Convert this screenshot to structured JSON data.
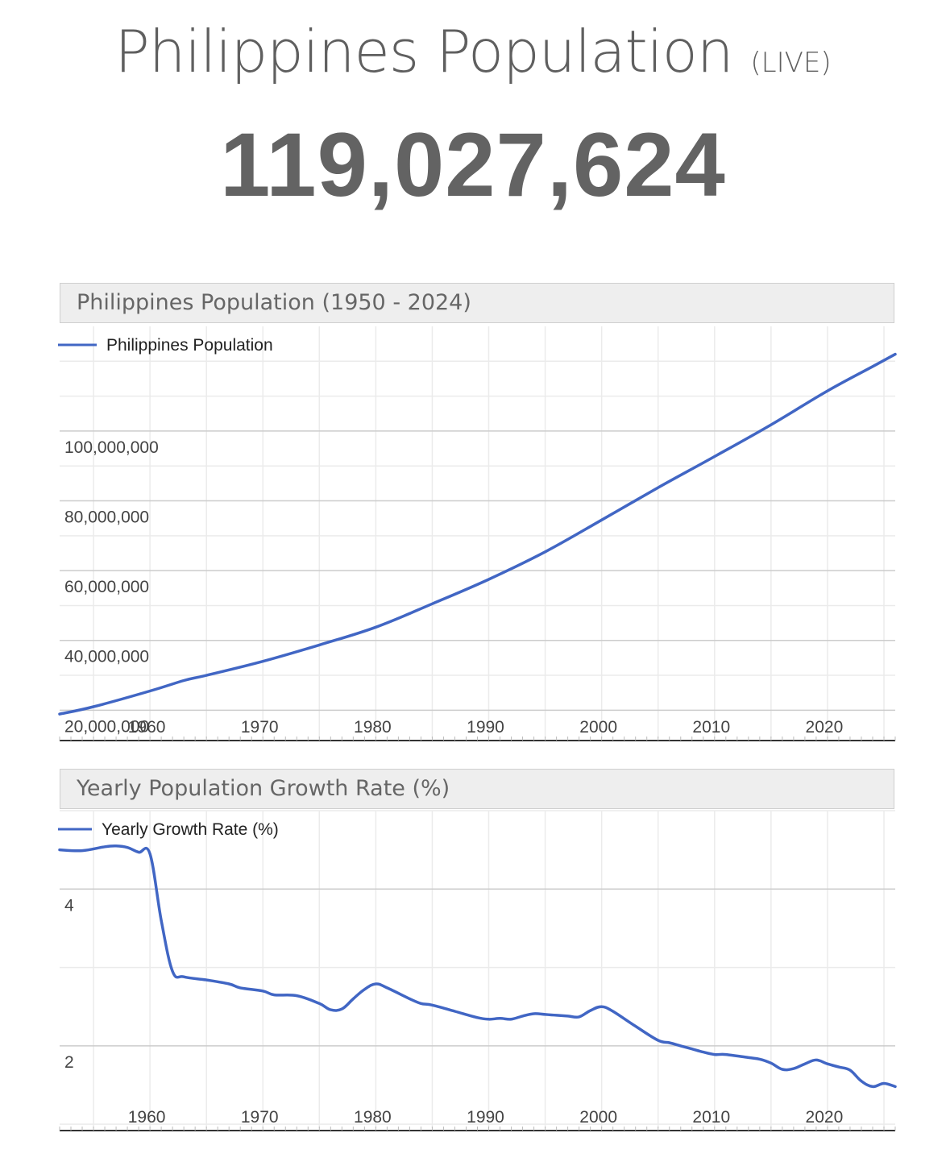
{
  "header": {
    "title": "Philippines Population",
    "live_tag": "(LIVE)",
    "live_count": "119,027,624"
  },
  "colors": {
    "line": "#4166c4",
    "grid_major": "#cccccc",
    "grid_minor": "#ebebeb",
    "header_bg": "#eeeeee"
  },
  "chart_data": [
    {
      "type": "line",
      "title": "Philippines Population (1950 - 2024)",
      "legend": "top-left",
      "grid": true,
      "xlim": [
        1952,
        2026
      ],
      "ylim": [
        12000000,
        130000000
      ],
      "x_ticks": [
        "1960",
        "1970",
        "1980",
        "1990",
        "2000",
        "2010",
        "2020"
      ],
      "y_ticks": [
        "20,000,000",
        "40,000,000",
        "60,000,000",
        "80,000,000",
        "100,000,000"
      ],
      "series": [
        {
          "name": "Philippines Population",
          "x": [
            1952,
            1955,
            1960,
            1963,
            1965,
            1970,
            1975,
            1980,
            1985,
            1990,
            1995,
            2000,
            2005,
            2010,
            2015,
            2020,
            2024,
            2026
          ],
          "values": [
            18900000,
            21000000,
            25500000,
            28500000,
            30000000,
            34000000,
            38700000,
            43800000,
            50500000,
            57500000,
            65400000,
            74500000,
            83800000,
            92700000,
            101800000,
            111500000,
            118500000,
            122000000
          ]
        }
      ]
    },
    {
      "type": "line",
      "title": "Yearly Population Growth Rate (%)",
      "legend": "top-left",
      "grid": true,
      "xlim": [
        1952,
        2026
      ],
      "ylim": [
        0.95,
        5.0
      ],
      "x_ticks": [
        "1960",
        "1970",
        "1980",
        "1990",
        "2000",
        "2010",
        "2020"
      ],
      "y_ticks": [
        "2",
        "4"
      ],
      "series": [
        {
          "name": "Yearly Growth Rate (%)",
          "x": [
            1952,
            1954,
            1956,
            1957,
            1958,
            1959,
            1960,
            1961,
            1962,
            1963,
            1965,
            1967,
            1968,
            1970,
            1971,
            1973,
            1975,
            1976,
            1977,
            1978,
            1979,
            1980,
            1981,
            1983,
            1984,
            1985,
            1987,
            1989,
            1990,
            1991,
            1992,
            1993,
            1994,
            1995,
            1996,
            1997,
            1998,
            1999,
            2000,
            2001,
            2003,
            2005,
            2006,
            2007,
            2008,
            2009,
            2010,
            2011,
            2013,
            2014,
            2015,
            2016,
            2017,
            2018,
            2019,
            2020,
            2021,
            2022,
            2023,
            2024,
            2025,
            2026
          ],
          "values": [
            4.5,
            4.49,
            4.54,
            4.55,
            4.53,
            4.47,
            4.45,
            3.6,
            2.95,
            2.88,
            2.84,
            2.79,
            2.74,
            2.7,
            2.65,
            2.64,
            2.54,
            2.46,
            2.47,
            2.6,
            2.72,
            2.79,
            2.74,
            2.6,
            2.54,
            2.52,
            2.44,
            2.36,
            2.34,
            2.35,
            2.34,
            2.38,
            2.41,
            2.4,
            2.39,
            2.38,
            2.37,
            2.45,
            2.5,
            2.44,
            2.25,
            2.07,
            2.04,
            2.0,
            1.96,
            1.92,
            1.89,
            1.89,
            1.85,
            1.83,
            1.78,
            1.7,
            1.71,
            1.77,
            1.82,
            1.77,
            1.73,
            1.69,
            1.55,
            1.48,
            1.52,
            1.48
          ]
        }
      ]
    }
  ]
}
